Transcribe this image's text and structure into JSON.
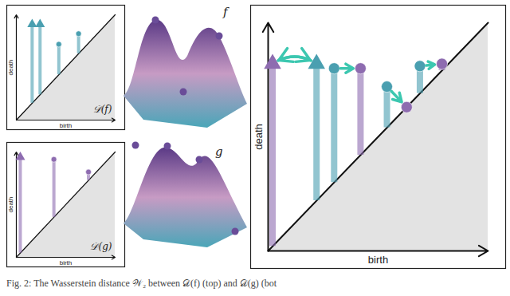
{
  "caption": "Fig. 2: The Wasserstein distance 𝒲₂ between 𝒟(f) (top) and 𝒟(g) (bot",
  "surface_labels": [
    "f",
    "g"
  ],
  "chart_data": [
    {
      "type": "persistence",
      "title": "𝒟(f)",
      "xlabel": "birth",
      "ylabel": "death",
      "xlim": [
        0,
        1
      ],
      "ylim": [
        0,
        1
      ],
      "tick_labels": false,
      "series": [
        {
          "color": "#4a9fb0",
          "x": [
            0.16,
            0.24,
            0.43,
            0.63
          ],
          "values": [
            0.91,
            0.91,
            0.72,
            0.82
          ],
          "markers": [
            "arrow",
            "arrow",
            "sphere",
            "sphere"
          ]
        }
      ]
    },
    {
      "type": "persistence",
      "title": "𝒟(g)",
      "xlabel": "birth",
      "ylabel": "death",
      "xlim": [
        0,
        1
      ],
      "ylim": [
        0,
        1
      ],
      "tick_labels": false,
      "series": [
        {
          "color": "#8e6cb0",
          "x": [
            0.04,
            0.38,
            0.73
          ],
          "values": [
            0.95,
            0.93,
            0.81
          ],
          "markers": [
            "arrow",
            "sphere",
            "sphere"
          ]
        }
      ]
    },
    {
      "type": "persistence",
      "xlabel": "birth",
      "ylabel": "death",
      "xlim": [
        0,
        1
      ],
      "ylim": [
        0,
        1
      ],
      "tick_labels": false,
      "series": [
        {
          "color": "#4a9fb0",
          "x": [
            0.22,
            0.3,
            0.54,
            0.69
          ],
          "values": [
            0.82,
            0.8,
            0.72,
            0.81
          ],
          "markers": [
            "arrow",
            "sphere",
            "sphere",
            "sphere"
          ]
        },
        {
          "color": "#8e6cb0",
          "x": [
            0.02,
            0.42,
            0.63,
            0.79
          ],
          "values": [
            0.82,
            0.8,
            0.63,
            0.82
          ],
          "markers": [
            "arrow",
            "sphere",
            "sphere",
            "sphere"
          ]
        }
      ],
      "matching": [
        [
          0,
          0
        ],
        [
          1,
          1
        ],
        [
          2,
          2
        ],
        [
          3,
          3
        ]
      ],
      "matching_color": "#3cc7b0"
    }
  ]
}
